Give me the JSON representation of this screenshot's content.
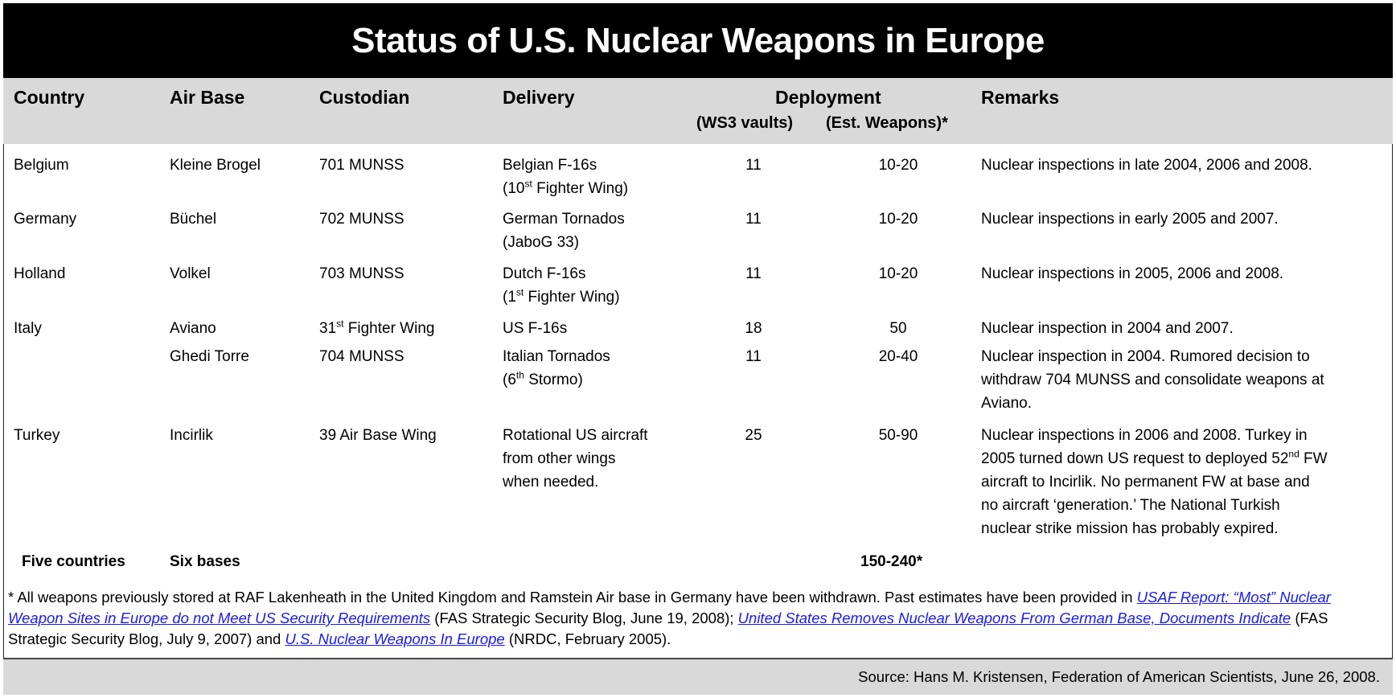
{
  "title": "Status of U.S. Nuclear Weapons in Europe",
  "headers": {
    "country": "Country",
    "air_base": "Air Base",
    "custodian": "Custodian",
    "delivery": "Delivery",
    "deployment": "Deployment",
    "ws3": "(WS3 vaults)",
    "est": "(Est. Weapons)*",
    "remarks": "Remarks"
  },
  "rows": [
    {
      "country": "Belgium",
      "air_base": "Kleine Brogel",
      "custodian": "701 MUNSS",
      "delivery1": "Belgian F-16s",
      "delivery2a": "(10",
      "delivery2sup": "st",
      "delivery2b": " Fighter Wing)",
      "ws3": "11",
      "est": "10-20",
      "remarks": [
        "Nuclear inspections in late 2004, 2006 and 2008."
      ]
    },
    {
      "country": "Germany",
      "air_base": "Büchel",
      "custodian": "702 MUNSS",
      "delivery1": "German Tornados",
      "delivery2a": "(JaboG 33)",
      "ws3": "11",
      "est": "10-20",
      "remarks": [
        "Nuclear inspections in early 2005 and 2007."
      ]
    },
    {
      "country": "Holland",
      "air_base": "Volkel",
      "custodian": "703 MUNSS",
      "delivery1": "Dutch F-16s",
      "delivery2a": "(1",
      "delivery2sup": "st",
      "delivery2b": " Fighter Wing)",
      "ws3": "11",
      "est": "10-20",
      "remarks": [
        "Nuclear inspections in 2005, 2006 and 2008."
      ]
    },
    {
      "country": "Italy",
      "air_base": "Aviano",
      "custodian_a": "31",
      "custodian_sup": "st",
      "custodian_b": " Fighter Wing",
      "delivery1": "US F-16s",
      "ws3": "18",
      "est": "50",
      "remarks": [
        "Nuclear inspection in 2004 and 2007."
      ]
    },
    {
      "country": "",
      "air_base": "Ghedi Torre",
      "custodian": "704 MUNSS",
      "delivery1": "Italian Tornados",
      "delivery2a": "(6",
      "delivery2sup": "th",
      "delivery2b": " Stormo)",
      "ws3": "11",
      "est": "20-40",
      "remarks": [
        "Nuclear inspection in 2004. Rumored decision to",
        "withdraw 704 MUNSS and consolidate weapons at",
        "Aviano."
      ]
    },
    {
      "country": "Turkey",
      "air_base": "Incirlik",
      "custodian": "39 Air Base Wing",
      "delivery": [
        "Rotational US aircraft",
        "from other wings",
        "when needed."
      ],
      "ws3": "25",
      "est": "50-90",
      "remarks_a": "Nuclear inspections in 2006 and 2008. Turkey in",
      "remarks_b1": "2005 turned down US request to deployed 52",
      "remarks_bsup": "nd",
      "remarks_b2": " FW",
      "remarks_rest": [
        "aircraft to Incirlik. No permanent FW at base and",
        "no aircraft ‘generation.’ The National Turkish",
        "nuclear strike mission has probably expired."
      ]
    }
  ],
  "totals": {
    "countries": "Five countries",
    "bases": "Six bases",
    "weapons": "150-240*"
  },
  "footnote": {
    "t1": "* All weapons previously stored at RAF Lakenheath in the United Kingdom and Ramstein Air base in Germany have been withdrawn. Past estimates have been provided in ",
    "link1": "USAF Report: “Most” Nuclear Weapon Sites in Europe do not Meet US Security Requirements",
    "t2": " (FAS Strategic Security Blog, June 19, 2008); ",
    "link2": "United States Removes Nuclear Weapons From German Base, Documents Indicate",
    "t3": " (FAS Strategic Security Blog, July 9, 2007) and ",
    "link3": "U.S. Nuclear Weapons In Europe",
    "t4": " (NRDC, February 2005)."
  },
  "source": "Source:  Hans M. Kristensen, Federation of American Scientists, June 26, 2008."
}
